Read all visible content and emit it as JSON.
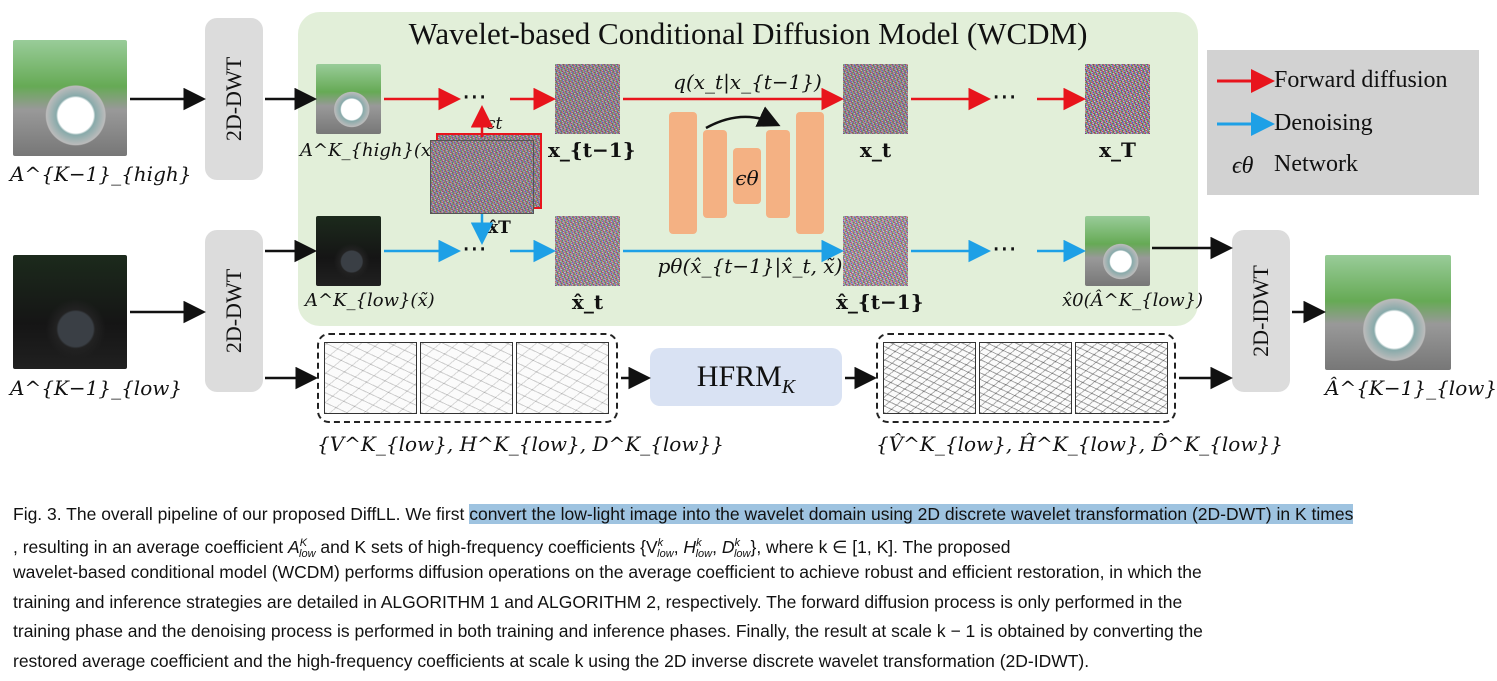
{
  "wcdm": {
    "title": "Wavelet-based Conditional Diffusion Model (WCDM)"
  },
  "dwt": {
    "label_top": "2D-DWT",
    "label_bottom": "2D-DWT",
    "label_idwt": "2D-IDWT"
  },
  "hfrm": {
    "label": "HFRM",
    "sub": "K"
  },
  "legend": {
    "forward": "Forward diffusion",
    "denoising": "Denoising",
    "network_symbol": "ϵθ",
    "network": "Network",
    "colors": {
      "forward": "#e8141c",
      "denoising": "#1ea0e6",
      "legend_bg": "#d2d2d2",
      "wcdm_bg": "#e2efd9",
      "hfrm_bg": "#d9e2f3",
      "unet": "#f4b183"
    }
  },
  "labels": {
    "input_high": "A^{K−1}_{high}",
    "input_low": "A^{K−1}_{low}",
    "a_high_x0": "A^K_{high}(x0)",
    "a_low_xtilde": "A^K_{low}(x̃)",
    "x_t_minus_1": "x_{t−1}",
    "x_t": "x_t",
    "x_T": "x_T",
    "xhat_t": "x̂_t",
    "xhat_t_minus_1": "x̂_{t−1}",
    "xhat_0": "x̂0(Â^K_{low})",
    "eps_t": "ϵt",
    "xhat_T": "x̂T",
    "q_label": "q(x_t|x_{t−1})",
    "p_label": "pθ(x̂_{t−1}|x̂_t, x̃)",
    "eps_theta": "ϵθ",
    "hf_in": "{V^K_{low}, H^K_{low}, D^K_{low}}",
    "hf_out": "{V̂^K_{low}, Ĥ^K_{low}, D̂^K_{low}}",
    "output": "Â^{K−1}_{low}"
  },
  "caption": {
    "prefix": "Fig. 3.  The overall pipeline of our proposed DiffLL. We first ",
    "highlight": "convert the low-light image into the wavelet domain using 2D discrete wavelet transformation (2D-DWT) in K times",
    "line1_rest": ", resulting in an average coefficient",
    "line1_tail": "and K sets of high-frequency coefficients {V",
    "line1_end": "}, where k ∈ [1, K]. The proposed",
    "line2": "wavelet-based conditional model (WCDM) performs diffusion operations on the average coefficient to achieve robust and efficient restoration, in which the",
    "line3": "training and inference strategies are detailed in ALGORITHM 1 and ALGORITHM 2, respectively. The forward diffusion process is only performed in the",
    "line4": "training phase and the denoising process is performed in both training and inference phases. Finally, the result at scale k − 1 is obtained by converting the",
    "line5": "restored average coefficient and the high-frequency coefficients at scale k using the 2D inverse discrete wavelet transformation (2D-IDWT)."
  }
}
